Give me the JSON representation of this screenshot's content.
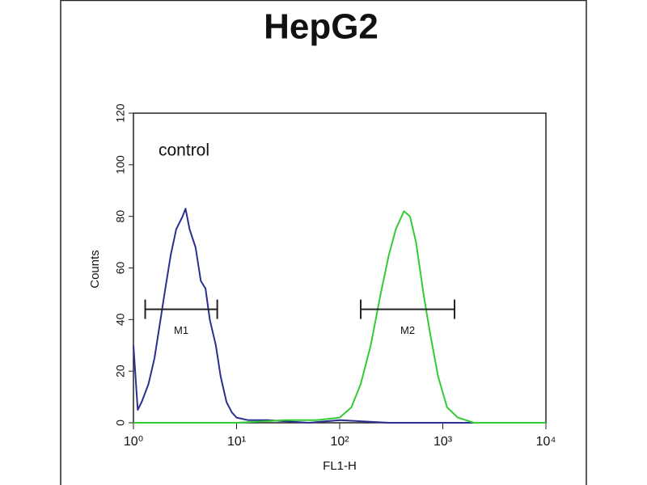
{
  "chart_data": {
    "type": "line",
    "title": "HepG2",
    "x_label": "FL1-H",
    "y_label": "Counts",
    "annotation": "control",
    "xscale": "log",
    "xlim": [
      1,
      10000
    ],
    "ylim": [
      0,
      120
    ],
    "xticks": [
      {
        "value": 1,
        "label": "10⁰"
      },
      {
        "value": 10,
        "label": "10¹"
      },
      {
        "value": 100,
        "label": "10²"
      },
      {
        "value": 1000,
        "label": "10³"
      },
      {
        "value": 10000,
        "label": "10⁴"
      }
    ],
    "yticks": [
      0,
      20,
      40,
      60,
      80,
      100,
      120
    ],
    "series": [
      {
        "color": "#2b2f8f",
        "x": [
          1.0,
          1.1,
          1.2,
          1.4,
          1.6,
          1.8,
          2.0,
          2.3,
          2.6,
          3.0,
          3.2,
          3.5,
          4.0,
          4.5,
          5.0,
          5.5,
          6.3,
          7.0,
          8.0,
          9.0,
          10,
          13,
          20,
          50,
          100,
          300,
          1000,
          10000
        ],
        "values": [
          30,
          5,
          8,
          15,
          25,
          38,
          50,
          65,
          75,
          80,
          83,
          75,
          68,
          55,
          52,
          40,
          30,
          18,
          8,
          4,
          2,
          1,
          1,
          0,
          1,
          0,
          0,
          0
        ]
      },
      {
        "color": "#33cc33",
        "x": [
          1,
          10,
          30,
          60,
          100,
          130,
          160,
          200,
          250,
          300,
          350,
          420,
          480,
          550,
          650,
          750,
          900,
          1100,
          1400,
          2000,
          10000
        ],
        "values": [
          0,
          0,
          1,
          1,
          2,
          6,
          15,
          30,
          50,
          65,
          75,
          82,
          80,
          70,
          50,
          35,
          18,
          6,
          2,
          0,
          0
        ]
      }
    ],
    "markers": [
      {
        "name": "M1",
        "x": [
          1.3,
          6.5
        ],
        "y": 44
      },
      {
        "name": "M2",
        "x": [
          160,
          1300
        ],
        "y": 44
      }
    ]
  }
}
